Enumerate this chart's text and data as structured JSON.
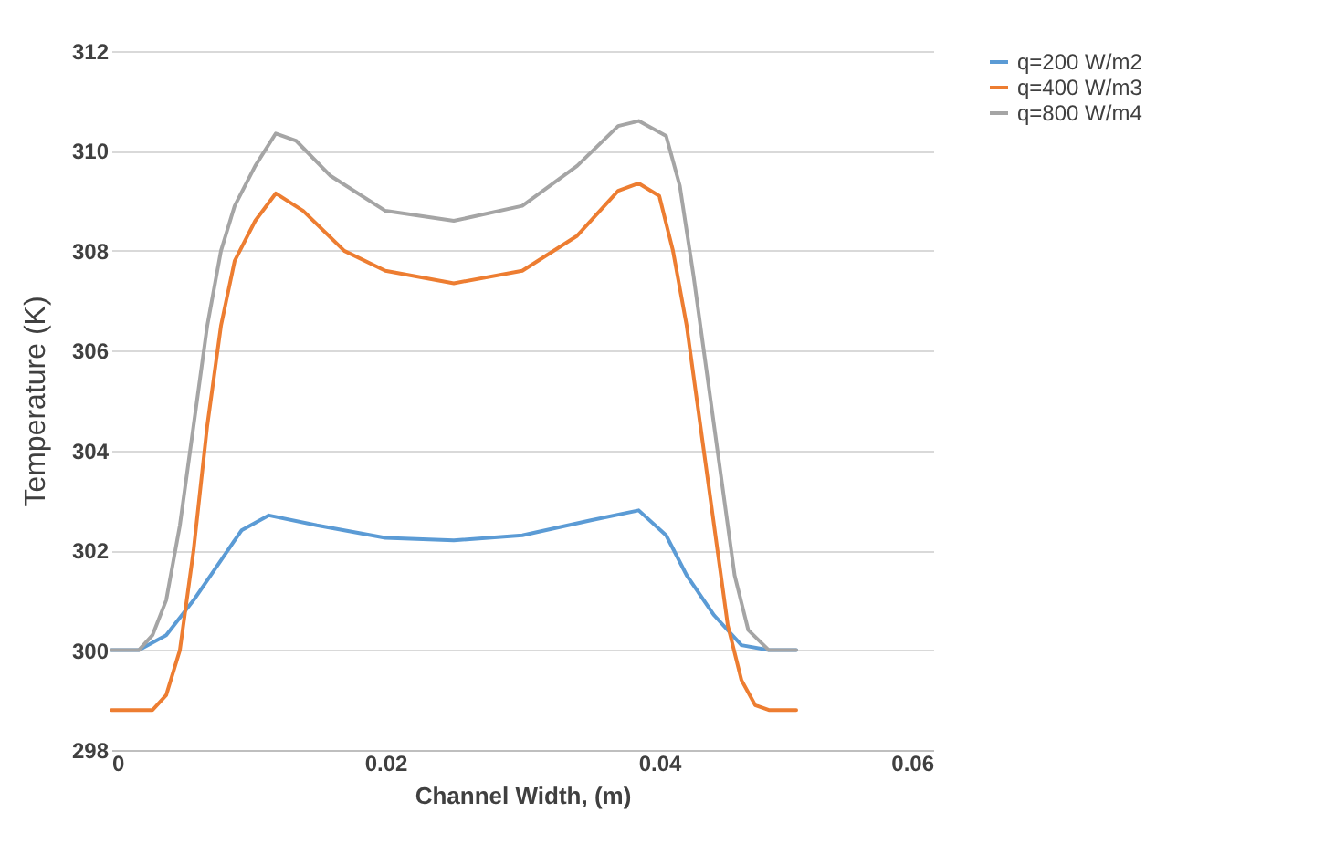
{
  "chart_data": {
    "type": "line",
    "xlabel": "Channel Width, (m)",
    "ylabel": "Temperature (K)",
    "xlim": [
      0,
      0.06
    ],
    "xticks": [
      0,
      0.02,
      0.04,
      0.06
    ],
    "ylim": [
      298,
      312
    ],
    "yticks": [
      298,
      300,
      302,
      304,
      306,
      308,
      310,
      312
    ],
    "grid": "y",
    "legend": "right",
    "series": [
      {
        "name": "q=200 W/m2",
        "color": "#5b9bd5",
        "x": [
          0,
          0.002,
          0.004,
          0.006,
          0.008,
          0.0095,
          0.0115,
          0.015,
          0.02,
          0.025,
          0.03,
          0.035,
          0.0385,
          0.0405,
          0.042,
          0.044,
          0.046,
          0.048,
          0.05
        ],
        "values": [
          300,
          300,
          300.3,
          301,
          301.8,
          302.4,
          302.7,
          302.5,
          302.25,
          302.2,
          302.3,
          302.6,
          302.8,
          302.3,
          301.5,
          300.7,
          300.1,
          300,
          300
        ]
      },
      {
        "name": "q=400 W/m3",
        "color": "#ed7d31",
        "x": [
          0,
          0.003,
          0.004,
          0.005,
          0.006,
          0.007,
          0.008,
          0.009,
          0.0105,
          0.012,
          0.014,
          0.017,
          0.02,
          0.025,
          0.03,
          0.034,
          0.037,
          0.0385,
          0.04,
          0.041,
          0.042,
          0.043,
          0.044,
          0.045,
          0.046,
          0.047,
          0.048,
          0.05
        ],
        "values": [
          298.8,
          298.8,
          299.1,
          300,
          302,
          304.5,
          306.5,
          307.8,
          308.6,
          309.15,
          308.8,
          308,
          307.6,
          307.35,
          307.6,
          308.3,
          309.2,
          309.35,
          309.1,
          308,
          306.5,
          304.5,
          302.5,
          300.5,
          299.4,
          298.9,
          298.8,
          298.8
        ]
      },
      {
        "name": "q=800 W/m4",
        "color": "#a5a5a5",
        "x": [
          0,
          0.002,
          0.003,
          0.004,
          0.005,
          0.006,
          0.007,
          0.008,
          0.009,
          0.0105,
          0.012,
          0.0135,
          0.016,
          0.02,
          0.025,
          0.03,
          0.034,
          0.037,
          0.0385,
          0.0405,
          0.0415,
          0.0425,
          0.0435,
          0.0445,
          0.0455,
          0.0465,
          0.048,
          0.05
        ],
        "values": [
          300,
          300,
          300.3,
          301,
          302.5,
          304.5,
          306.5,
          308,
          308.9,
          309.7,
          310.35,
          310.2,
          309.5,
          308.8,
          308.6,
          308.9,
          309.7,
          310.5,
          310.6,
          310.3,
          309.3,
          307.5,
          305.5,
          303.5,
          301.5,
          300.4,
          300,
          300
        ]
      }
    ]
  }
}
